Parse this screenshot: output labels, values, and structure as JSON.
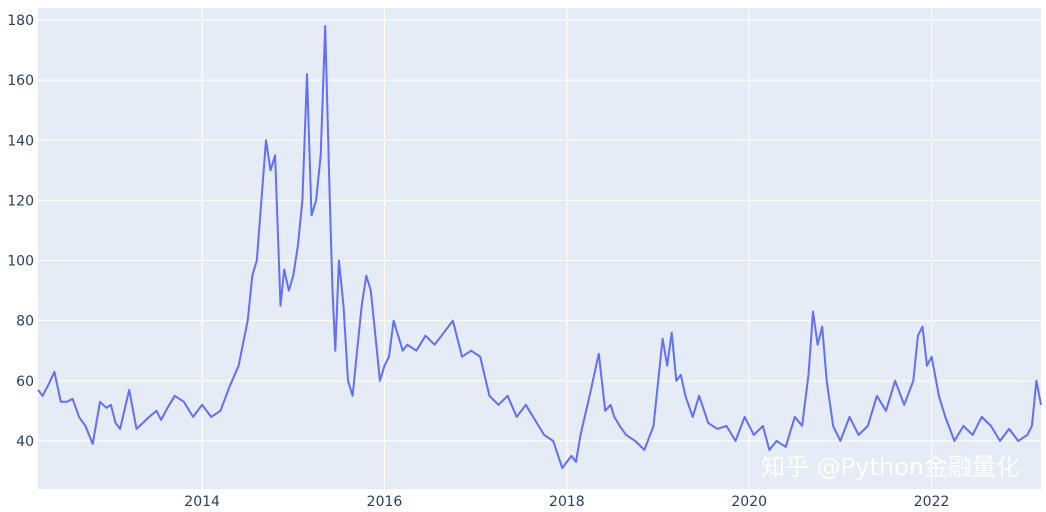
{
  "chart_data": {
    "type": "line",
    "title": "",
    "xlabel": "",
    "ylabel": "",
    "xlim": [
      2012.2,
      2023.2
    ],
    "ylim": [
      24,
      184
    ],
    "x_ticks": [
      2014,
      2016,
      2018,
      2020,
      2022
    ],
    "x_tick_labels": [
      "2014",
      "2016",
      "2018",
      "2020",
      "2022"
    ],
    "y_ticks": [
      40,
      60,
      80,
      100,
      120,
      140,
      160,
      180
    ],
    "y_tick_labels": [
      "40",
      "60",
      "80",
      "100",
      "120",
      "140",
      "160",
      "180"
    ],
    "grid": true,
    "legend": "none",
    "colors": {
      "plot_background": "#e5ecf6",
      "grid": "#ffffff",
      "line": "#636efa",
      "tick_text": "#2a3f5f"
    },
    "series": [
      {
        "x": [
          2012.2,
          2012.25,
          2012.32,
          2012.38,
          2012.45,
          2012.52,
          2012.58,
          2012.65,
          2012.72,
          2012.8,
          2012.88,
          2012.95,
          2013.0,
          2013.05,
          2013.1,
          2013.2,
          2013.28,
          2013.35,
          2013.42,
          2013.5,
          2013.55,
          2013.62,
          2013.7,
          2013.8,
          2013.9,
          2014.0,
          2014.1,
          2014.2,
          2014.3,
          2014.4,
          2014.5,
          2014.55,
          2014.6,
          2014.65,
          2014.7,
          2014.75,
          2014.8,
          2014.86,
          2014.9,
          2014.95,
          2015.0,
          2015.05,
          2015.1,
          2015.15,
          2015.2,
          2015.25,
          2015.3,
          2015.35,
          2015.4,
          2015.43,
          2015.46,
          2015.5,
          2015.55,
          2015.6,
          2015.65,
          2015.7,
          2015.75,
          2015.8,
          2015.85,
          2015.9,
          2015.95,
          2016.0,
          2016.05,
          2016.1,
          2016.15,
          2016.2,
          2016.25,
          2016.35,
          2016.45,
          2016.55,
          2016.65,
          2016.75,
          2016.85,
          2016.95,
          2017.05,
          2017.15,
          2017.25,
          2017.35,
          2017.45,
          2017.55,
          2017.65,
          2017.75,
          2017.85,
          2017.95,
          2018.05,
          2018.1,
          2018.15,
          2018.25,
          2018.35,
          2018.42,
          2018.48,
          2018.52,
          2018.58,
          2018.65,
          2018.75,
          2018.85,
          2018.95,
          2019.05,
          2019.1,
          2019.15,
          2019.2,
          2019.25,
          2019.3,
          2019.38,
          2019.45,
          2019.55,
          2019.65,
          2019.75,
          2019.85,
          2019.95,
          2020.05,
          2020.15,
          2020.22,
          2020.3,
          2020.4,
          2020.5,
          2020.58,
          2020.65,
          2020.7,
          2020.75,
          2020.8,
          2020.85,
          2020.92,
          2021.0,
          2021.1,
          2021.2,
          2021.3,
          2021.4,
          2021.5,
          2021.6,
          2021.7,
          2021.8,
          2021.85,
          2021.9,
          2021.95,
          2022.0,
          2022.08,
          2022.15,
          2022.25,
          2022.35,
          2022.45,
          2022.55,
          2022.65,
          2022.75,
          2022.85,
          2022.95,
          2023.05,
          2023.1,
          2023.15,
          2023.2
        ],
        "values": [
          57,
          55,
          59,
          63,
          53,
          53,
          54,
          48,
          45,
          39,
          53,
          51,
          52,
          46,
          44,
          57,
          44,
          46,
          48,
          50,
          47,
          51,
          55,
          53,
          48,
          52,
          48,
          50,
          58,
          65,
          80,
          95,
          100,
          120,
          140,
          130,
          135,
          85,
          97,
          90,
          95,
          105,
          120,
          162,
          115,
          120,
          135,
          178,
          120,
          90,
          70,
          100,
          85,
          60,
          55,
          70,
          85,
          95,
          90,
          75,
          60,
          65,
          68,
          80,
          75,
          70,
          72,
          70,
          75,
          72,
          76,
          80,
          68,
          70,
          68,
          55,
          52,
          55,
          48,
          52,
          47,
          42,
          40,
          31,
          35,
          33,
          42,
          55,
          69,
          50,
          52,
          48,
          45,
          42,
          40,
          37,
          45,
          74,
          65,
          76,
          60,
          62,
          55,
          48,
          55,
          46,
          44,
          45,
          40,
          48,
          42,
          45,
          37,
          40,
          38,
          48,
          45,
          62,
          83,
          72,
          78,
          60,
          45,
          40,
          48,
          42,
          45,
          55,
          50,
          60,
          52,
          60,
          75,
          78,
          65,
          68,
          55,
          48,
          40,
          45,
          42,
          48,
          45,
          40,
          44,
          40,
          42,
          45,
          60,
          52
        ]
      }
    ],
    "watermark": "知乎 @Python金融量化"
  }
}
